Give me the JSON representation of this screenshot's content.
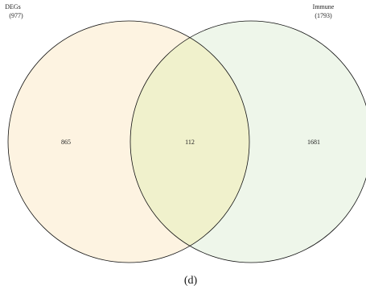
{
  "sets": [
    {
      "name": "DEGs",
      "total": "(977)",
      "only_count": "865",
      "fill_color": "#fdf3e1"
    },
    {
      "name": "Immune",
      "total": "(1793)",
      "only_count": "1681",
      "fill_color": "#eef6ea"
    }
  ],
  "intersection": {
    "count": "112",
    "fill_color": "#f0f1cc"
  },
  "outline_color": "#111111",
  "panel_label": "(d)"
}
